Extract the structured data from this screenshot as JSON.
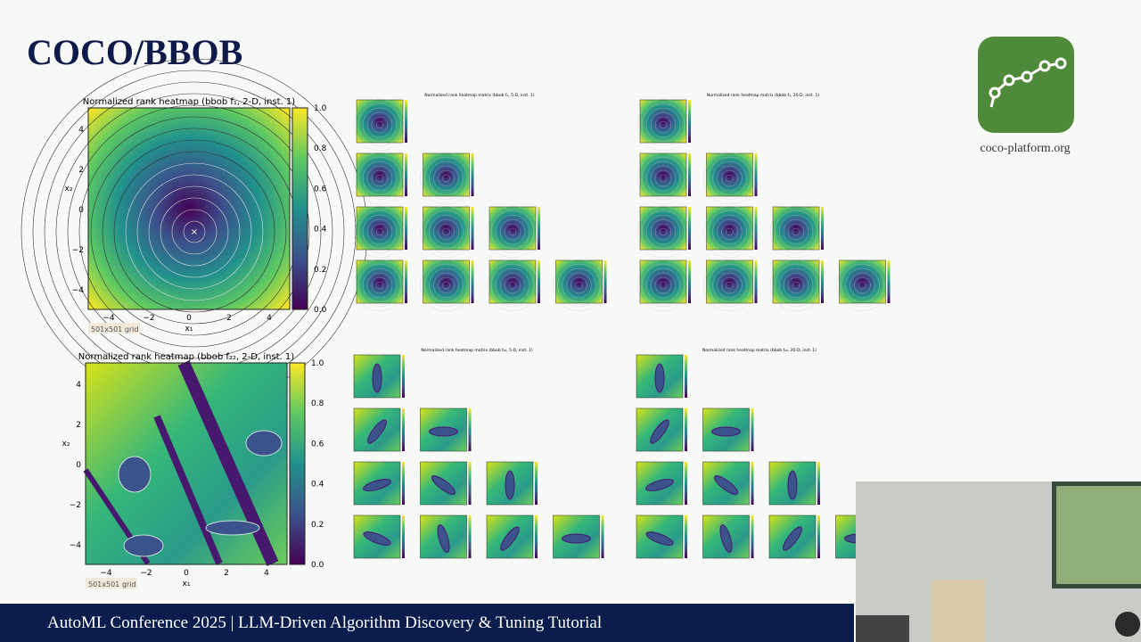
{
  "slide": {
    "title": "COCO/BBOB",
    "logo_caption": "coco-platform.org",
    "footer": "AutoML Conference 2025 | LLM-Driven Algorithm Discovery & Tuning Tutorial"
  },
  "heatmaps": [
    {
      "title": "Normalized rank heatmap (bbob f₁, 2-D, inst. 1)",
      "x_label": "x₁",
      "y_label": "x₂",
      "xticks": [
        "−4",
        "−2",
        "0",
        "2",
        "4"
      ],
      "yticks": [
        "4",
        "2",
        "0",
        "−2",
        "−4"
      ],
      "colorbar_ticks": [
        "0.0",
        "0.2",
        "0.4",
        "0.6",
        "0.8",
        "1.0"
      ],
      "note": "501x501 grid"
    },
    {
      "title": "Normalized rank heatmap (bbob f₂₂, 2-D, inst. 1)",
      "x_label": "x₁",
      "y_label": "x₂",
      "xticks": [
        "−4",
        "−2",
        "0",
        "2",
        "4"
      ],
      "yticks": [
        "4",
        "2",
        "0",
        "−2",
        "−4"
      ],
      "colorbar_ticks": [
        "0.0",
        "0.2",
        "0.4",
        "0.6",
        "0.8",
        "1.0"
      ],
      "note": "501x501 grid"
    }
  ],
  "matrices": [
    {
      "title": "Normalized rank heatmap matrix (bbob f₁, 5-D, inst. 1)"
    },
    {
      "title": "Normalized rank heatmap matrix (bbob f₁, 20-D, inst. 1)"
    },
    {
      "title": "Normalized rank heatmap matrix (bbob f₂₂, 5-D, inst. 1)"
    },
    {
      "title": "Normalized rank heatmap matrix (bbob f₂₂, 20-D, inst. 1)"
    }
  ]
}
